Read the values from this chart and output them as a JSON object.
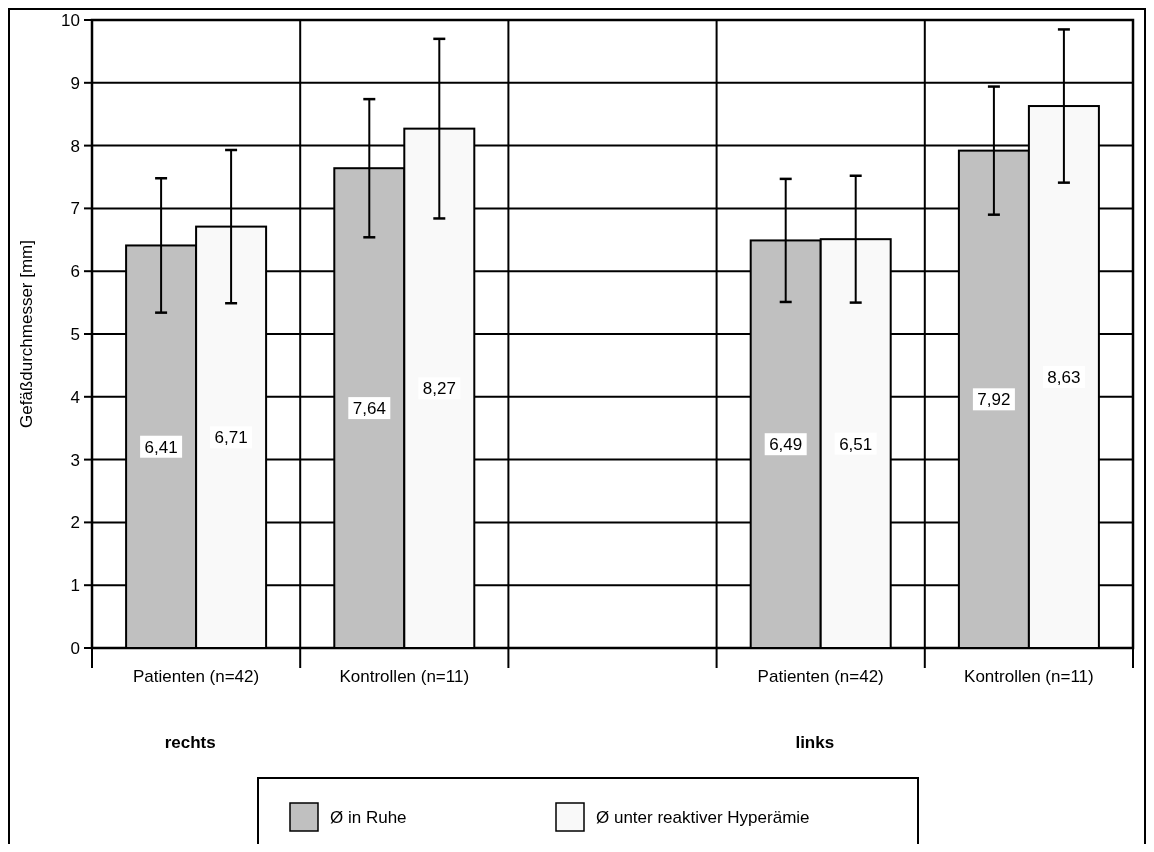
{
  "chart_data": {
    "type": "bar",
    "ylabel": "Gefäßdurchmesser [mm]",
    "categories": [
      "Patienten (n=42)",
      "Kontrollen (n=11)",
      null,
      "Patienten (n=42)",
      "Kontrollen (n=11)"
    ],
    "series": [
      {
        "name": "Ø in Ruhe",
        "color": "#c0c0c0",
        "values": [
          6.41,
          7.64,
          null,
          6.49,
          7.92
        ],
        "errors": [
          1.07,
          1.1,
          null,
          0.98,
          1.02
        ],
        "value_labels": [
          "6,41",
          "7,64",
          null,
          "6,49",
          "7,92"
        ]
      },
      {
        "name": "Ø unter reaktiver Hyperämie",
        "color": "#f9f9f9",
        "values": [
          6.71,
          8.27,
          null,
          6.51,
          8.63
        ],
        "errors": [
          1.22,
          1.43,
          null,
          1.01,
          1.22
        ],
        "value_labels": [
          "6,71",
          "8,27",
          null,
          "6,51",
          "8,63"
        ]
      }
    ],
    "annotations": [
      "rechts",
      "links"
    ],
    "ylim": [
      0,
      10
    ],
    "yticks": [
      0,
      1,
      2,
      3,
      4,
      5,
      6,
      7,
      8,
      9,
      10
    ],
    "grid": true,
    "legend": "bottom"
  }
}
